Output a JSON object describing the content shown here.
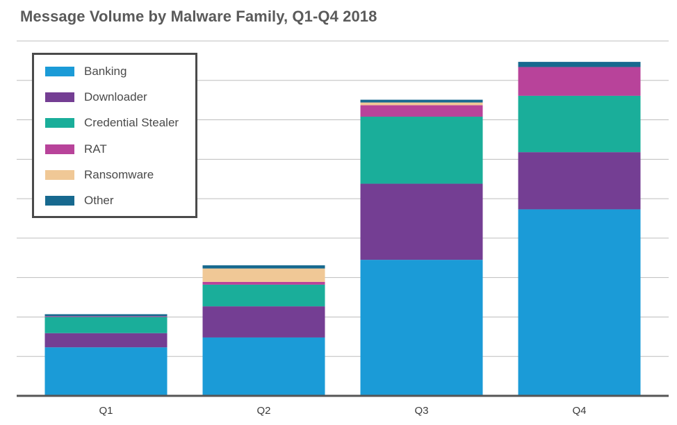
{
  "title": "Message Volume by Malware Family, Q1-Q4 2018",
  "chart_data": {
    "type": "bar",
    "stacked": true,
    "title": "Message Volume by Malware Family, Q1-Q4 2018",
    "xlabel": "",
    "ylabel": "",
    "categories": [
      "Q1",
      "Q2",
      "Q3",
      "Q4"
    ],
    "ylim": [
      0,
      9
    ],
    "grid": true,
    "legend_position": "top-left",
    "series": [
      {
        "name": "Banking",
        "color": "#1b9bd7",
        "values": [
          1.23,
          1.48,
          3.45,
          4.73
        ]
      },
      {
        "name": "Downloader",
        "color": "#743e93",
        "values": [
          0.36,
          0.79,
          1.93,
          1.45
        ]
      },
      {
        "name": "Credential Stealer",
        "color": "#1aae9a",
        "values": [
          0.41,
          0.55,
          1.7,
          1.43
        ]
      },
      {
        "name": "RAT",
        "color": "#b8439a",
        "values": [
          0.02,
          0.07,
          0.29,
          0.73
        ]
      },
      {
        "name": "Ransomware",
        "color": "#f0c896",
        "values": [
          0.0,
          0.34,
          0.07,
          0.0
        ]
      },
      {
        "name": "Other",
        "color": "#17698f",
        "values": [
          0.05,
          0.08,
          0.07,
          0.13
        ]
      }
    ]
  }
}
